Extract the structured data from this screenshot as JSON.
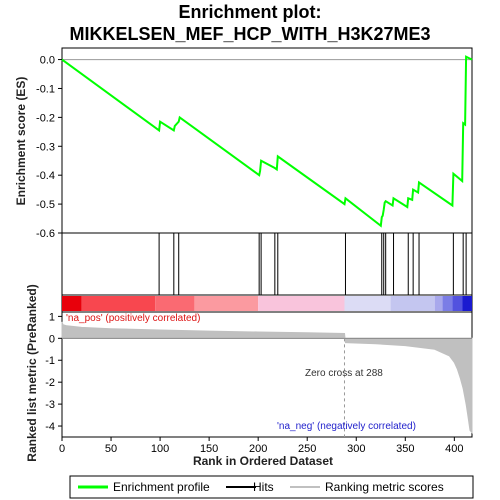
{
  "chart_data": {
    "type": "line",
    "title_line1": "Enrichment plot:",
    "title_line2": "MIKKELSEN_MEF_HCP_WITH_H3K27ME3",
    "es_panel": {
      "ylabel": "Enrichment score (ES)",
      "ylim": [
        -0.6,
        0.04
      ],
      "yticks": [
        0.0,
        -0.1,
        -0.2,
        -0.3,
        -0.4,
        -0.5,
        -0.6
      ],
      "ytick_labels": [
        "0.0",
        "-0.1",
        "-0.2",
        "-0.3",
        "-0.4",
        "-0.5",
        "-0.6"
      ],
      "series": [
        {
          "name": "Enrichment profile",
          "color": "#00ff00",
          "x": [
            0,
            99,
            100,
            114,
            115,
            119,
            120,
            201,
            202,
            203,
            217,
            219,
            220,
            288,
            289,
            325,
            326,
            327,
            328,
            329,
            330,
            337,
            338,
            352,
            353,
            357,
            358,
            363,
            364,
            398,
            399,
            408,
            409,
            411,
            412,
            418
          ],
          "y": [
            0.0,
            -0.245,
            -0.215,
            -0.245,
            -0.23,
            -0.215,
            -0.2,
            -0.4,
            -0.385,
            -0.35,
            -0.375,
            -0.38,
            -0.335,
            -0.5,
            -0.48,
            -0.575,
            -0.545,
            -0.54,
            -0.52,
            -0.495,
            -0.49,
            -0.505,
            -0.48,
            -0.51,
            -0.48,
            -0.485,
            -0.45,
            -0.46,
            -0.425,
            -0.505,
            -0.395,
            -0.42,
            -0.22,
            -0.225,
            0.01,
            0.0
          ]
        }
      ]
    },
    "hits": {
      "name": "Hits",
      "color": "#000000",
      "x": [
        99,
        114,
        119,
        201,
        203,
        217,
        220,
        289,
        326,
        328,
        330,
        338,
        353,
        358,
        364,
        399,
        409,
        412
      ]
    },
    "heatbar": {
      "segments": [
        {
          "from": 0,
          "to": 20,
          "color": "#e8000b"
        },
        {
          "from": 20,
          "to": 95,
          "color": "#f8474f"
        },
        {
          "from": 95,
          "to": 135,
          "color": "#fa6a72"
        },
        {
          "from": 135,
          "to": 200,
          "color": "#fb9aa0"
        },
        {
          "from": 200,
          "to": 288,
          "color": "#f9c4dc"
        },
        {
          "from": 288,
          "to": 335,
          "color": "#dcdcf5"
        },
        {
          "from": 335,
          "to": 380,
          "color": "#c4c6f0"
        },
        {
          "from": 380,
          "to": 388,
          "color": "#a8a8ec"
        },
        {
          "from": 388,
          "to": 398,
          "color": "#7b7de6"
        },
        {
          "from": 398,
          "to": 408,
          "color": "#5252df"
        },
        {
          "from": 408,
          "to": 418,
          "color": "#1a1ad0"
        }
      ]
    },
    "metric_panel": {
      "ylabel": "Ranked list metric (PreRanked)",
      "ylim": [
        -4.5,
        1.2
      ],
      "yticks": [
        1,
        0,
        -1,
        -2,
        -3,
        -4
      ],
      "ytick_labels": [
        "1",
        "0",
        "-1",
        "-2",
        "-3",
        "-4"
      ],
      "series": [
        {
          "name": "Ranking metric scores",
          "color": "#c0c0c0",
          "x": [
            0,
            1,
            5,
            20,
            50,
            100,
            150,
            200,
            250,
            288,
            289,
            320,
            350,
            380,
            395,
            400,
            403,
            406,
            409,
            412,
            414,
            416,
            418
          ],
          "y": [
            0.75,
            0.62,
            0.57,
            0.5,
            0.44,
            0.38,
            0.33,
            0.29,
            0.25,
            0.22,
            -0.2,
            -0.25,
            -0.33,
            -0.5,
            -0.8,
            -1.1,
            -1.4,
            -1.8,
            -2.3,
            -3.0,
            -3.6,
            -4.2,
            -4.3
          ]
        }
      ],
      "pos_label": "'na_pos' (positively correlated)",
      "neg_label": "'na_neg' (negatively correlated)",
      "zero_cross_label": "Zero cross at 288",
      "zero_cross_x": 288
    },
    "xlabel": "Rank in Ordered Dataset",
    "xlim": [
      0,
      418
    ],
    "xticks": [
      0,
      50,
      100,
      150,
      200,
      250,
      300,
      350,
      400
    ],
    "xtick_labels": [
      "0",
      "50",
      "100",
      "150",
      "200",
      "250",
      "300",
      "350",
      "400"
    ],
    "legend": {
      "placement": "bottom",
      "entries": [
        {
          "label": "Enrichment profile",
          "color": "#00ff00"
        },
        {
          "label": "Hits",
          "color": "#000000"
        },
        {
          "label": "Ranking metric scores",
          "color": "#c0c0c0"
        }
      ]
    }
  }
}
